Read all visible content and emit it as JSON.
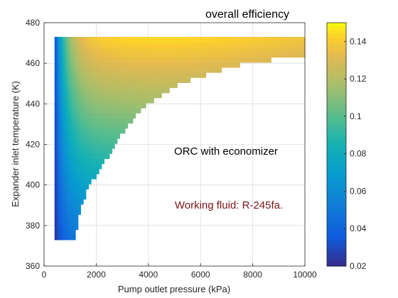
{
  "chart_data": {
    "type": "heatmap",
    "title": "overall efficiency",
    "xlabel": "Pump outlet pressure (kPa)",
    "ylabel": "Expander inlet temperature (K)",
    "xlim": [
      0,
      10000
    ],
    "ylim": [
      360,
      480
    ],
    "xticks": [
      0,
      2000,
      4000,
      6000,
      8000,
      10000
    ],
    "yticks": [
      360,
      380,
      400,
      420,
      440,
      460,
      480
    ],
    "grid": true,
    "colorbar": {
      "position": "right",
      "range": [
        0.02,
        0.15
      ],
      "ticks": [
        0.02,
        0.04,
        0.06,
        0.08,
        0.1,
        0.12,
        0.14
      ],
      "colormap": "parula"
    },
    "domain": {
      "p_min": 400,
      "p_max": 10000,
      "t_min": 373,
      "t_max": 473,
      "feasibility_boundary": [
        {
          "p": 1200,
          "t": 373
        },
        {
          "p": 1250,
          "t": 380
        },
        {
          "p": 1400,
          "t": 390
        },
        {
          "p": 1700,
          "t": 400
        },
        {
          "p": 2200,
          "t": 410
        },
        {
          "p": 2900,
          "t": 425
        },
        {
          "p": 3800,
          "t": 440
        },
        {
          "p": 5000,
          "t": 450
        },
        {
          "p": 6500,
          "t": 457
        },
        {
          "p": 8000,
          "t": 462
        },
        {
          "p": 10000,
          "t": 465
        }
      ]
    },
    "efficiency_samples": [
      {
        "p": 450,
        "t": 420,
        "eff": 0.03
      },
      {
        "p": 700,
        "t": 420,
        "eff": 0.08
      },
      {
        "p": 1000,
        "t": 420,
        "eff": 0.1
      },
      {
        "p": 1500,
        "t": 420,
        "eff": 0.115
      },
      {
        "p": 2500,
        "t": 420,
        "eff": 0.125
      },
      {
        "p": 4000,
        "t": 465,
        "eff": 0.145
      },
      {
        "p": 7000,
        "t": 468,
        "eff": 0.14
      },
      {
        "p": 10000,
        "t": 470,
        "eff": 0.125
      },
      {
        "p": 1000,
        "t": 380,
        "eff": 0.085
      },
      {
        "p": 3500,
        "t": 445,
        "eff": 0.13
      }
    ],
    "annotations": [
      {
        "text": "ORC with economizer",
        "color": "#000000"
      },
      {
        "text": "Working fluid: R-245fa.",
        "color": "#7b1416"
      }
    ]
  }
}
